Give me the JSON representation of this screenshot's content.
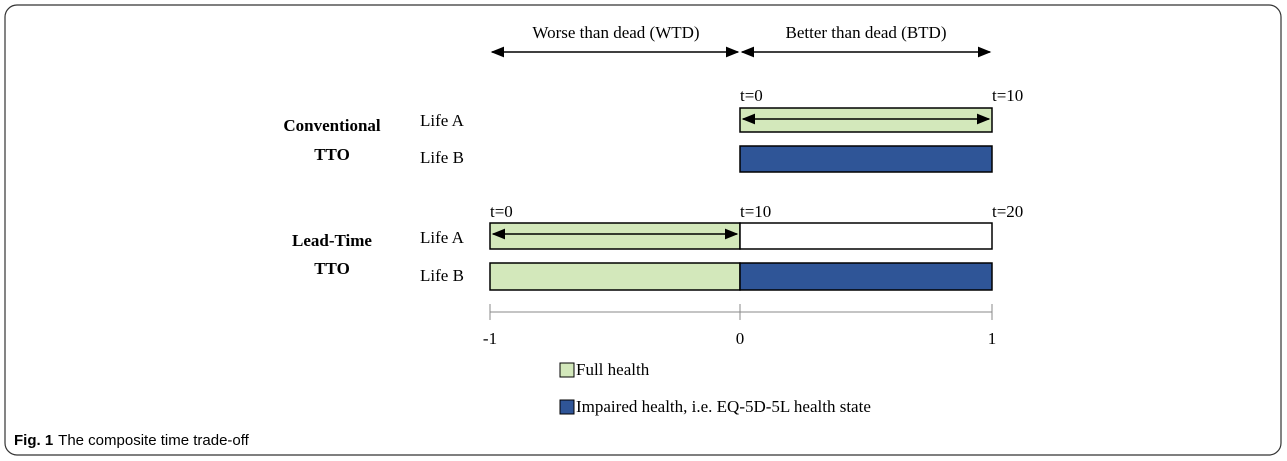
{
  "header": {
    "wtd": "Worse than dead (WTD)",
    "btd": "Better than dead (BTD)"
  },
  "conventional": {
    "label": [
      "Conventional",
      "TTO"
    ],
    "life_a": "Life A",
    "life_b": "Life B",
    "t_start": "t=0",
    "t_end": "t=10"
  },
  "lead_time": {
    "label": [
      "Lead-Time",
      "TTO"
    ],
    "life_a": "Life A",
    "life_b": "Life B",
    "t_start": "t=0",
    "t_mid": "t=10",
    "t_end": "t=20"
  },
  "axis": {
    "labels": [
      "-1",
      "0",
      "1"
    ]
  },
  "legend": [
    "Full health",
    "Impaired health, i.e. EQ-5D-5L health state"
  ],
  "caption": {
    "label": "Fig. 1",
    "text": "The composite time trade-off"
  }
}
